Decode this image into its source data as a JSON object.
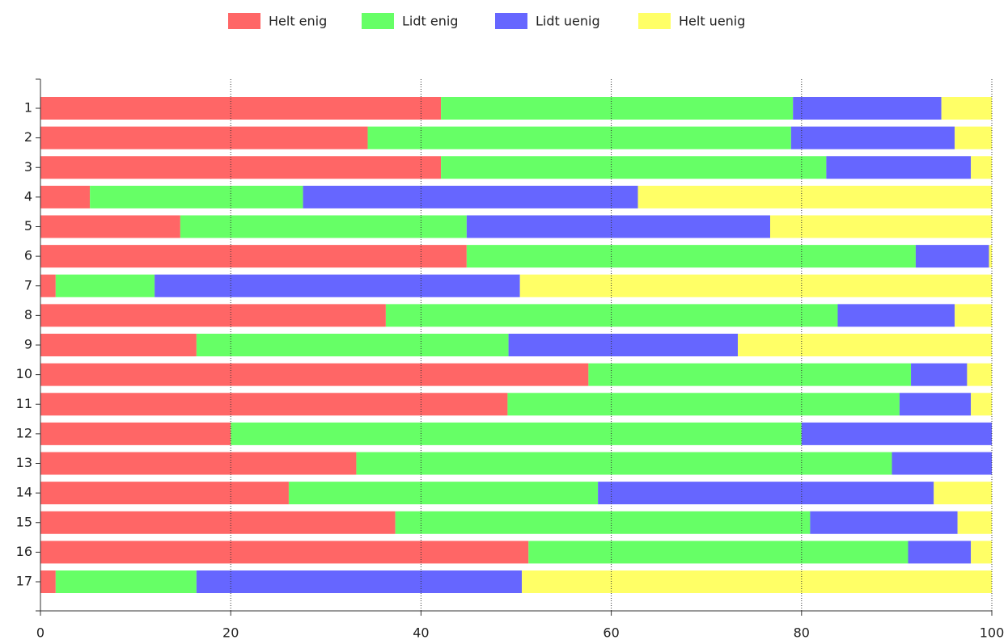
{
  "chart_data": {
    "type": "stacked-barh",
    "categories": [
      "1",
      "2",
      "3",
      "4",
      "5",
      "6",
      "7",
      "8",
      "9",
      "10",
      "11",
      "12",
      "13",
      "14",
      "15",
      "16",
      "17"
    ],
    "series": [
      {
        "name": "Helt enig",
        "color": "#ff6666",
        "values": [
          42.1,
          34.4,
          42.1,
          5.2,
          14.7,
          44.8,
          1.6,
          36.3,
          16.4,
          57.6,
          49.1,
          20,
          33.2,
          26.1,
          37.3,
          51.3,
          1.6
        ]
      },
      {
        "name": "Lidt enig",
        "color": "#66ff66",
        "values": [
          37.0,
          44.5,
          40.5,
          22.4,
          30.1,
          47.2,
          10.4,
          47.5,
          32.8,
          33.9,
          41.2,
          60,
          56.3,
          32.5,
          43.6,
          39.9,
          14.8
        ]
      },
      {
        "name": "Lidt uenig",
        "color": "#6666ff",
        "values": [
          15.6,
          17.2,
          15.2,
          35.2,
          31.9,
          7.7,
          38.4,
          12.3,
          24.1,
          5.9,
          7.5,
          20,
          10.5,
          35.3,
          15.5,
          6.6,
          34.2
        ]
      },
      {
        "name": "Helt uenig",
        "color": "#ffff66",
        "values": [
          5.3,
          3.9,
          2.2,
          37.2,
          23.3,
          0.3,
          49.6,
          3.9,
          26.7,
          2.6,
          2.2,
          0,
          0,
          6.1,
          3.6,
          2.2,
          49.4
        ]
      }
    ],
    "xlim": [
      0,
      100
    ],
    "xticks": [
      0,
      20,
      40,
      60,
      80,
      100
    ],
    "grid": true,
    "legend": "top"
  }
}
